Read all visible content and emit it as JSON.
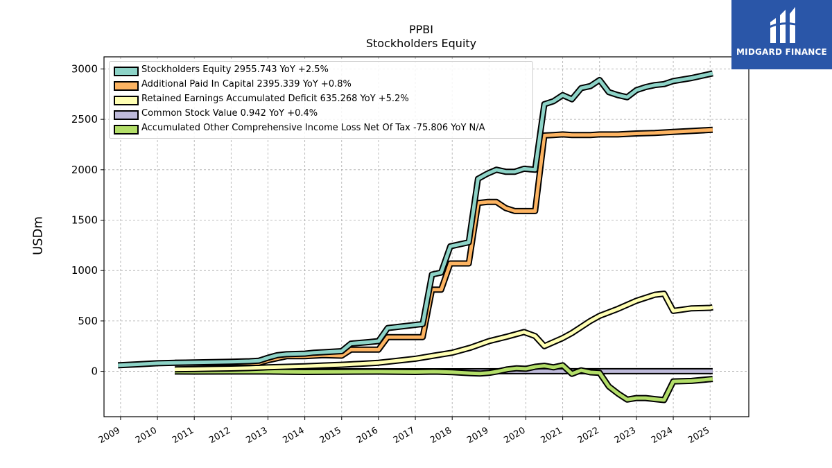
{
  "title": "PPBI",
  "subtitle": "Stockholders  Equity",
  "logo": {
    "text": "MIDGARD FINANCE",
    "bg": "#2a56a8"
  },
  "chart_data": {
    "type": "line",
    "title": "PPBI",
    "subtitle": "Stockholders  Equity",
    "ylabel": "USDm",
    "xlabel": "",
    "xlim": [
      2008.55,
      2026.05
    ],
    "ylim": [
      -450,
      3120
    ],
    "grid": true,
    "legend_position": "top-left",
    "x_ticks": [
      2009,
      2010,
      2011,
      2012,
      2013,
      2014,
      2015,
      2016,
      2017,
      2018,
      2019,
      2020,
      2021,
      2022,
      2023,
      2024,
      2025
    ],
    "y_ticks": [
      0,
      500,
      1000,
      1500,
      2000,
      2500,
      3000
    ],
    "series": [
      {
        "name": "Stockholders Equity",
        "legend_label": "Stockholders Equity  2955.743 YoY +2.5%",
        "color": "#8dd3c7",
        "points": [
          [
            2008.93,
            60
          ],
          [
            2009.5,
            70
          ],
          [
            2010,
            80
          ],
          [
            2010.5,
            85
          ],
          [
            2011,
            88
          ],
          [
            2011.5,
            92
          ],
          [
            2012,
            95
          ],
          [
            2012.5,
            100
          ],
          [
            2012.75,
            105
          ],
          [
            2013,
            135
          ],
          [
            2013.25,
            160
          ],
          [
            2013.5,
            170
          ],
          [
            2014,
            175
          ],
          [
            2014.25,
            185
          ],
          [
            2014.5,
            190
          ],
          [
            2015,
            200
          ],
          [
            2015.25,
            275
          ],
          [
            2015.75,
            290
          ],
          [
            2016,
            300
          ],
          [
            2016.25,
            430
          ],
          [
            2016.5,
            440
          ],
          [
            2017.2,
            470
          ],
          [
            2017.45,
            960
          ],
          [
            2017.7,
            980
          ],
          [
            2017.95,
            1240
          ],
          [
            2018.2,
            1260
          ],
          [
            2018.45,
            1280
          ],
          [
            2018.7,
            1910
          ],
          [
            2018.95,
            1960
          ],
          [
            2019.2,
            2000
          ],
          [
            2019.45,
            1980
          ],
          [
            2019.7,
            1980
          ],
          [
            2019.95,
            2010
          ],
          [
            2020.25,
            2000
          ],
          [
            2020.5,
            2650
          ],
          [
            2020.75,
            2680
          ],
          [
            2021,
            2740
          ],
          [
            2021.25,
            2700
          ],
          [
            2021.5,
            2810
          ],
          [
            2021.75,
            2830
          ],
          [
            2022,
            2890
          ],
          [
            2022.25,
            2770
          ],
          [
            2022.5,
            2740
          ],
          [
            2022.75,
            2720
          ],
          [
            2023,
            2790
          ],
          [
            2023.25,
            2820
          ],
          [
            2023.5,
            2840
          ],
          [
            2023.75,
            2850
          ],
          [
            2024,
            2880
          ],
          [
            2024.5,
            2910
          ],
          [
            2025,
            2950
          ],
          [
            2025.07,
            2955.743
          ]
        ]
      },
      {
        "name": "Additional Paid In Capital",
        "legend_label": "Additional Paid In Capital  2395.339 YoY +0.8%",
        "color": "#fdb462",
        "points": [
          [
            2010.47,
            85
          ],
          [
            2011,
            85
          ],
          [
            2011.5,
            84
          ],
          [
            2012,
            83
          ],
          [
            2012.75,
            83
          ],
          [
            2013,
            110
          ],
          [
            2013.25,
            130
          ],
          [
            2013.5,
            150
          ],
          [
            2014,
            150
          ],
          [
            2014.25,
            155
          ],
          [
            2014.5,
            160
          ],
          [
            2015,
            155
          ],
          [
            2015.25,
            215
          ],
          [
            2015.75,
            215
          ],
          [
            2016,
            215
          ],
          [
            2016.25,
            340
          ],
          [
            2016.5,
            340
          ],
          [
            2017.2,
            340
          ],
          [
            2017.45,
            810
          ],
          [
            2017.7,
            810
          ],
          [
            2017.95,
            1070
          ],
          [
            2018.2,
            1070
          ],
          [
            2018.45,
            1070
          ],
          [
            2018.7,
            1670
          ],
          [
            2018.95,
            1680
          ],
          [
            2019.2,
            1680
          ],
          [
            2019.45,
            1620
          ],
          [
            2019.7,
            1590
          ],
          [
            2019.95,
            1590
          ],
          [
            2020.25,
            1590
          ],
          [
            2020.5,
            2340
          ],
          [
            2020.75,
            2345
          ],
          [
            2021,
            2350
          ],
          [
            2021.25,
            2345
          ],
          [
            2021.5,
            2345
          ],
          [
            2021.75,
            2345
          ],
          [
            2022,
            2350
          ],
          [
            2022.5,
            2350
          ],
          [
            2023,
            2360
          ],
          [
            2023.5,
            2365
          ],
          [
            2024,
            2375
          ],
          [
            2024.5,
            2385
          ],
          [
            2025,
            2395
          ],
          [
            2025.07,
            2395.339
          ]
        ]
      },
      {
        "name": "Retained Earnings Accumulated Deficit",
        "legend_label": "Retained Earnings Accumulated Deficit  635.268 YoY +5.2%",
        "color": "#ffffb3",
        "points": [
          [
            2010.47,
            20
          ],
          [
            2011,
            22
          ],
          [
            2011.5,
            25
          ],
          [
            2012,
            28
          ],
          [
            2012.5,
            32
          ],
          [
            2013,
            40
          ],
          [
            2013.5,
            45
          ],
          [
            2014,
            50
          ],
          [
            2014.5,
            58
          ],
          [
            2015,
            65
          ],
          [
            2015.5,
            75
          ],
          [
            2016,
            85
          ],
          [
            2016.5,
            105
          ],
          [
            2017,
            125
          ],
          [
            2017.5,
            155
          ],
          [
            2018,
            185
          ],
          [
            2018.5,
            235
          ],
          [
            2019,
            300
          ],
          [
            2019.5,
            345
          ],
          [
            2019.95,
            390
          ],
          [
            2020.25,
            350
          ],
          [
            2020.5,
            250
          ],
          [
            2021,
            330
          ],
          [
            2021.25,
            380
          ],
          [
            2021.5,
            440
          ],
          [
            2021.75,
            500
          ],
          [
            2022,
            550
          ],
          [
            2022.5,
            620
          ],
          [
            2023,
            700
          ],
          [
            2023.5,
            760
          ],
          [
            2023.75,
            770
          ],
          [
            2024,
            600
          ],
          [
            2024.5,
            625
          ],
          [
            2025,
            630
          ],
          [
            2025.07,
            635.268
          ]
        ]
      },
      {
        "name": "Common Stock Value",
        "legend_label": "Common Stock Value  0.942 YoY +0.4%",
        "color": "#bebada",
        "points": [
          [
            2010.47,
            0.4
          ],
          [
            2012,
            0.4
          ],
          [
            2014,
            0.4
          ],
          [
            2016,
            0.5
          ],
          [
            2018,
            0.6
          ],
          [
            2020,
            0.9
          ],
          [
            2022,
            0.9
          ],
          [
            2024,
            0.94
          ],
          [
            2025.07,
            0.942
          ]
        ]
      },
      {
        "name": "Accumulated Other Comprehensive Income Loss Net Of Tax",
        "legend_label": "Accumulated Other Comprehensive Income Loss Net Of Tax  -75.806 YoY N/A",
        "color": "#b3de69",
        "points": [
          [
            2010.47,
            -2
          ],
          [
            2011,
            -3
          ],
          [
            2012,
            -2
          ],
          [
            2013,
            -2
          ],
          [
            2013.5,
            -5
          ],
          [
            2014,
            -6
          ],
          [
            2015,
            -4
          ],
          [
            2016,
            -3
          ],
          [
            2017,
            -6
          ],
          [
            2017.5,
            -3
          ],
          [
            2018,
            -8
          ],
          [
            2018.5,
            -18
          ],
          [
            2018.75,
            -22
          ],
          [
            2019,
            -15
          ],
          [
            2019.25,
            0
          ],
          [
            2019.5,
            20
          ],
          [
            2019.75,
            30
          ],
          [
            2020,
            25
          ],
          [
            2020.25,
            45
          ],
          [
            2020.5,
            55
          ],
          [
            2020.75,
            40
          ],
          [
            2021,
            60
          ],
          [
            2021.25,
            -25
          ],
          [
            2021.5,
            10
          ],
          [
            2021.75,
            -10
          ],
          [
            2022,
            -15
          ],
          [
            2022.25,
            -150
          ],
          [
            2022.5,
            -220
          ],
          [
            2022.75,
            -280
          ],
          [
            2023,
            -265
          ],
          [
            2023.25,
            -265
          ],
          [
            2023.5,
            -275
          ],
          [
            2023.75,
            -285
          ],
          [
            2024,
            -100
          ],
          [
            2024.5,
            -95
          ],
          [
            2025,
            -78
          ],
          [
            2025.07,
            -75.806
          ]
        ]
      }
    ]
  }
}
